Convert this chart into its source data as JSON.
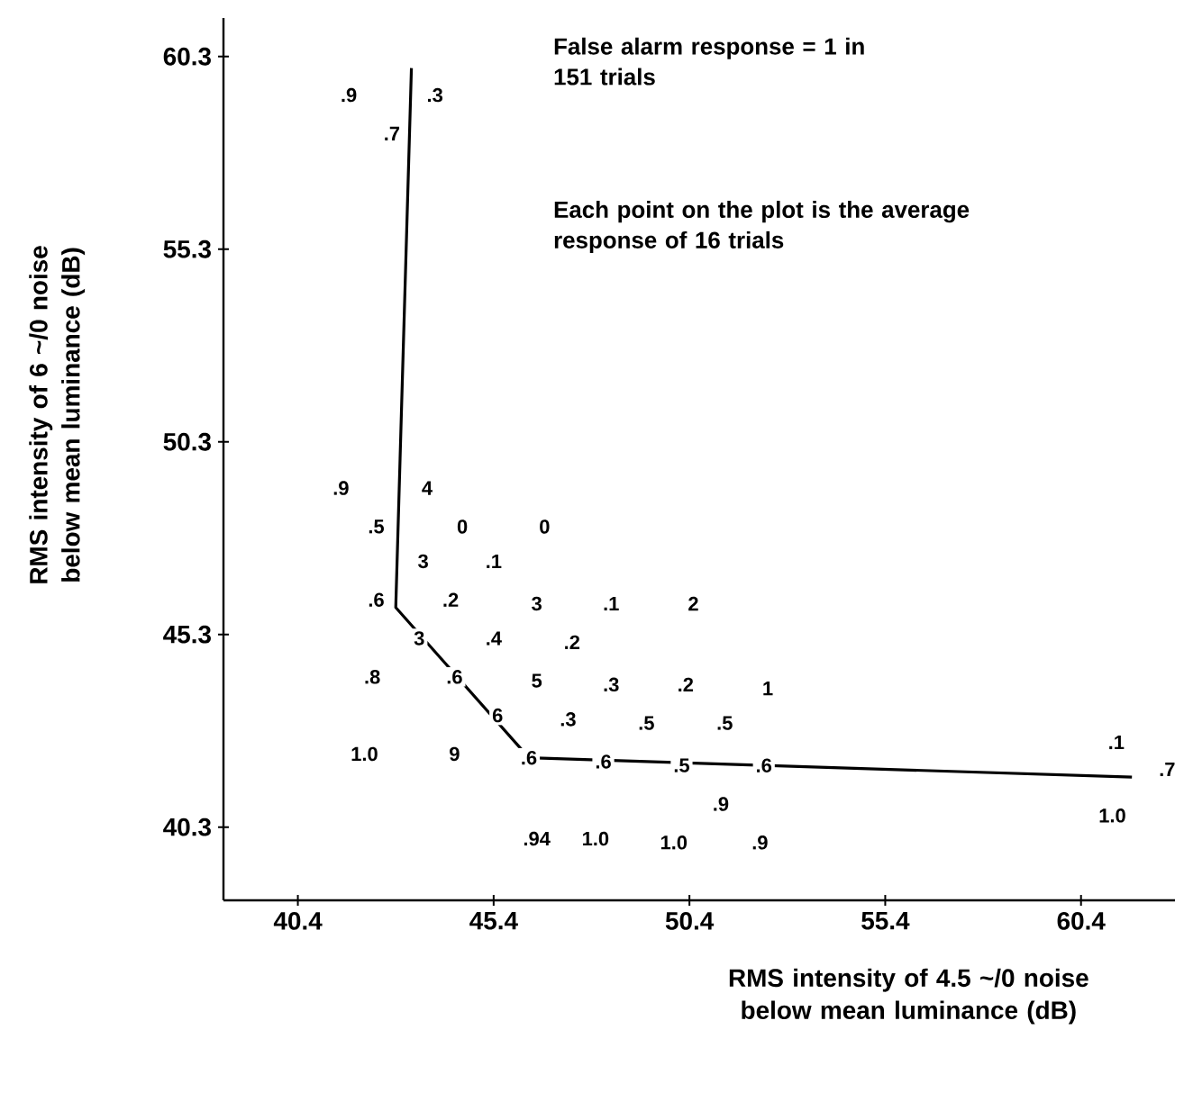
{
  "chart_data": {
    "type": "line",
    "xlabel": "RMS intensity of 4.5 ~/0 noise below mean luminance (dB)",
    "ylabel": "RMS intensity of 6 ~/0 noise below mean luminance (dB)",
    "annotations": [
      "False alarm response = 1 in 151 trials",
      "Each point on the plot is the average response of 16 trials",
      {
        "text": ".9",
        "x": 41.7,
        "y": 59.3
      },
      {
        "text": ".3",
        "x": 43.9,
        "y": 59.3
      },
      {
        "text": ".7",
        "x": 42.8,
        "y": 58.3
      },
      {
        "text": ".9",
        "x": 41.5,
        "y": 49.1
      },
      {
        "text": "4",
        "x": 43.7,
        "y": 49.1
      },
      {
        "text": ".5",
        "x": 42.4,
        "y": 48.1
      },
      {
        "text": "0",
        "x": 44.6,
        "y": 48.1
      },
      {
        "text": "0",
        "x": 46.7,
        "y": 48.1
      },
      {
        "text": "3",
        "x": 43.6,
        "y": 47.2
      },
      {
        "text": ".1",
        "x": 45.4,
        "y": 47.2
      },
      {
        "text": ".6",
        "x": 42.4,
        "y": 46.2
      },
      {
        "text": ".2",
        "x": 44.3,
        "y": 46.2
      },
      {
        "text": "3",
        "x": 46.5,
        "y": 46.1
      },
      {
        "text": ".1",
        "x": 48.4,
        "y": 46.1
      },
      {
        "text": "2",
        "x": 50.5,
        "y": 46.1
      },
      {
        "text": "3",
        "x": 43.5,
        "y": 45.2
      },
      {
        "text": ".4",
        "x": 45.4,
        "y": 45.2
      },
      {
        "text": ".2",
        "x": 47.4,
        "y": 45.1
      },
      {
        "text": ".8",
        "x": 42.3,
        "y": 44.2
      },
      {
        "text": ".6",
        "x": 44.4,
        "y": 44.2
      },
      {
        "text": "5",
        "x": 46.5,
        "y": 44.1
      },
      {
        "text": ".3",
        "x": 48.4,
        "y": 44.0
      },
      {
        "text": ".2",
        "x": 50.3,
        "y": 44.0
      },
      {
        "text": "1",
        "x": 52.4,
        "y": 43.9
      },
      {
        "text": "6",
        "x": 45.5,
        "y": 43.2
      },
      {
        "text": ".3",
        "x": 47.3,
        "y": 43.1
      },
      {
        "text": ".5",
        "x": 49.3,
        "y": 43.0
      },
      {
        "text": ".5",
        "x": 51.3,
        "y": 43.0
      },
      {
        "text": "1.0",
        "x": 42.1,
        "y": 42.2
      },
      {
        "text": "9",
        "x": 44.4,
        "y": 42.2
      },
      {
        "text": ".6",
        "x": 46.3,
        "y": 42.1
      },
      {
        "text": ".6",
        "x": 48.2,
        "y": 42.0
      },
      {
        "text": ".5",
        "x": 50.2,
        "y": 41.9
      },
      {
        "text": ".6",
        "x": 52.3,
        "y": 41.9
      },
      {
        "text": ".9",
        "x": 51.2,
        "y": 40.9
      },
      {
        "text": ".94",
        "x": 46.5,
        "y": 40.0
      },
      {
        "text": "1.0",
        "x": 48.0,
        "y": 40.0
      },
      {
        "text": "1.0",
        "x": 50.0,
        "y": 39.9
      },
      {
        "text": ".9",
        "x": 52.2,
        "y": 39.9
      },
      {
        "text": ".1",
        "x": 61.3,
        "y": 42.5
      },
      {
        "text": ".7",
        "x": 62.6,
        "y": 41.8
      },
      {
        "text": "1.0",
        "x": 61.2,
        "y": 40.6
      }
    ],
    "xlim": [
      38.5,
      62.8
    ],
    "ylim": [
      38.4,
      61.3
    ],
    "xticks": [
      40.4,
      45.4,
      50.4,
      55.4,
      60.4
    ],
    "yticks": [
      40.3,
      45.3,
      50.3,
      55.3,
      60.3
    ],
    "series": [
      {
        "color": "#000000",
        "line_style": "solid",
        "x": [
          43.3,
          42.9,
          46.3,
          52.3,
          61.7
        ],
        "values": [
          60.0,
          46.0,
          42.1,
          41.9,
          41.6
        ]
      }
    ]
  }
}
